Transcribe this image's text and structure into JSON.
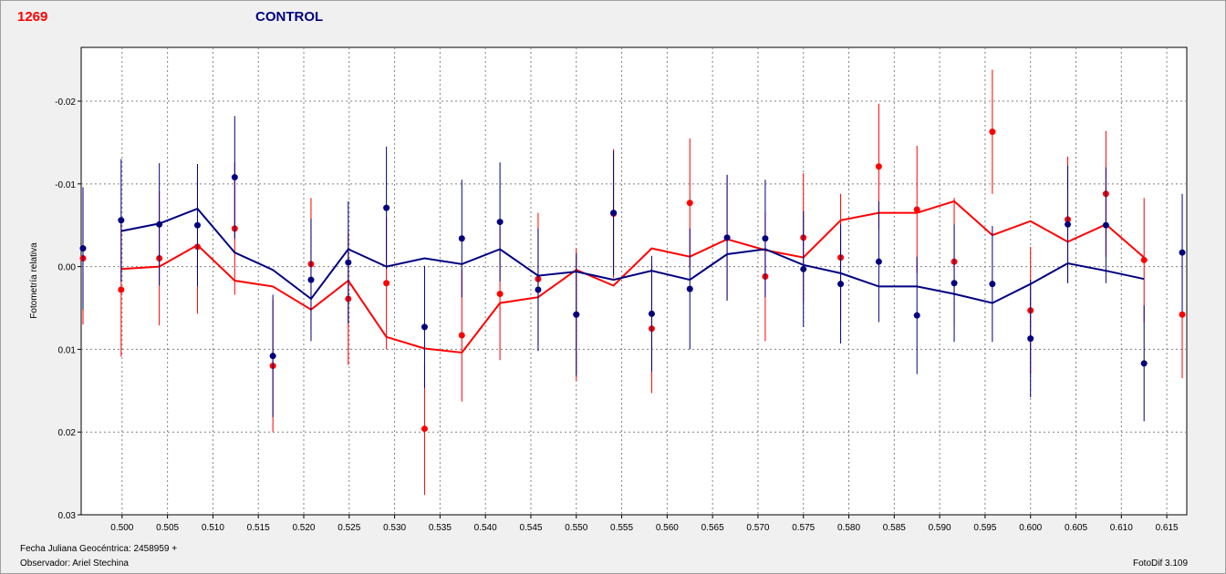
{
  "header": {
    "id_label": "1269",
    "title": "CONTROL"
  },
  "footer": {
    "date_label": "Fecha Juliana Geocéntrica: 2458959 +",
    "observer_label": "Observador: Ariel Stechina",
    "software_label": "FotoDif 3.109"
  },
  "colors": {
    "series_a": "#ff0000",
    "series_b": "#00007f",
    "grid": "#808080"
  },
  "chart_data": {
    "type": "scatter",
    "ylabel": "Fotometría relativa",
    "xlabel": "",
    "xlim": [
      0.4955,
      0.6172
    ],
    "ylim": [
      -0.0265,
      0.03
    ],
    "y_inverted": true,
    "grid": true,
    "x_ticks": [
      "0.500",
      "0.505",
      "0.510",
      "0.515",
      "0.520",
      "0.525",
      "0.530",
      "0.535",
      "0.540",
      "0.545",
      "0.550",
      "0.555",
      "0.560",
      "0.565",
      "0.570",
      "0.575",
      "0.580",
      "0.585",
      "0.590",
      "0.595",
      "0.600",
      "0.605",
      "0.610",
      "0.615"
    ],
    "y_ticks": [
      "-0.02",
      "-0.01",
      "0.00",
      "0.01",
      "0.02",
      "0.03"
    ],
    "series": [
      {
        "color": "#ff0000",
        "points": [
          {
            "x": 0.4957,
            "y": -0.001,
            "e": 0.008
          },
          {
            "x": 0.4999,
            "y": 0.0028,
            "e": 0.0081
          },
          {
            "x": 0.5041,
            "y": -0.001,
            "e": 0.0081
          },
          {
            "x": 0.5083,
            "y": -0.0024,
            "e": 0.0081
          },
          {
            "x": 0.5124,
            "y": -0.0046,
            "e": 0.008
          },
          {
            "x": 0.5166,
            "y": 0.012,
            "e": 0.008
          },
          {
            "x": 0.5208,
            "y": -0.0003,
            "e": 0.008
          },
          {
            "x": 0.5249,
            "y": 0.0039,
            "e": 0.008
          },
          {
            "x": 0.5291,
            "y": 0.002,
            "e": 0.008
          },
          {
            "x": 0.5333,
            "y": 0.0196,
            "e": 0.008
          },
          {
            "x": 0.5374,
            "y": 0.0083,
            "e": 0.008
          },
          {
            "x": 0.5416,
            "y": 0.0033,
            "e": 0.008
          },
          {
            "x": 0.5458,
            "y": 0.0015,
            "e": 0.008
          },
          {
            "x": 0.55,
            "y": 0.0058,
            "e": 0.008
          },
          {
            "x": 0.5541,
            "y": -0.0064,
            "e": 0.0078
          },
          {
            "x": 0.5583,
            "y": 0.0075,
            "e": 0.0078
          },
          {
            "x": 0.5625,
            "y": -0.0077,
            "e": 0.0078
          },
          {
            "x": 0.5666,
            "y": -0.0035,
            "e": 0.0076
          },
          {
            "x": 0.5708,
            "y": 0.0012,
            "e": 0.0078
          },
          {
            "x": 0.575,
            "y": -0.0035,
            "e": 0.0078
          },
          {
            "x": 0.5791,
            "y": -0.0011,
            "e": 0.0077
          },
          {
            "x": 0.5833,
            "y": -0.0121,
            "e": 0.0076
          },
          {
            "x": 0.5875,
            "y": -0.0069,
            "e": 0.0077
          },
          {
            "x": 0.5916,
            "y": -0.0006,
            "e": 0.0077
          },
          {
            "x": 0.5958,
            "y": -0.0163,
            "e": 0.0075
          },
          {
            "x": 0.6,
            "y": 0.0053,
            "e": 0.0077
          },
          {
            "x": 0.6041,
            "y": -0.0057,
            "e": 0.0076
          },
          {
            "x": 0.6083,
            "y": -0.0088,
            "e": 0.0076
          },
          {
            "x": 0.6125,
            "y": -0.0008,
            "e": 0.0075
          },
          {
            "x": 0.6167,
            "y": 0.0058,
            "e": 0.0077
          }
        ],
        "line": [
          {
            "x": 0.4999,
            "y": 0.0003
          },
          {
            "x": 0.5041,
            "y": 0.0
          },
          {
            "x": 0.5083,
            "y": -0.0026
          },
          {
            "x": 0.5124,
            "y": 0.0017
          },
          {
            "x": 0.5166,
            "y": 0.0024
          },
          {
            "x": 0.5208,
            "y": 0.0052
          },
          {
            "x": 0.5249,
            "y": 0.0017
          },
          {
            "x": 0.5291,
            "y": 0.0085
          },
          {
            "x": 0.5333,
            "y": 0.0099
          },
          {
            "x": 0.5374,
            "y": 0.0104
          },
          {
            "x": 0.5416,
            "y": 0.0044
          },
          {
            "x": 0.5458,
            "y": 0.0037
          },
          {
            "x": 0.55,
            "y": 0.0004
          },
          {
            "x": 0.5541,
            "y": 0.0023
          },
          {
            "x": 0.5583,
            "y": -0.0022
          },
          {
            "x": 0.5625,
            "y": -0.0012
          },
          {
            "x": 0.5666,
            "y": -0.0033
          },
          {
            "x": 0.5708,
            "y": -0.002
          },
          {
            "x": 0.575,
            "y": -0.0011
          },
          {
            "x": 0.5791,
            "y": -0.0056
          },
          {
            "x": 0.5833,
            "y": -0.0065
          },
          {
            "x": 0.5875,
            "y": -0.0065
          },
          {
            "x": 0.5916,
            "y": -0.0079
          },
          {
            "x": 0.5958,
            "y": -0.0038
          },
          {
            "x": 0.6,
            "y": -0.0055
          },
          {
            "x": 0.6041,
            "y": -0.003
          },
          {
            "x": 0.6083,
            "y": -0.0051
          },
          {
            "x": 0.6125,
            "y": -0.0011
          }
        ]
      },
      {
        "color": "#00007f",
        "points": [
          {
            "x": 0.4957,
            "y": -0.0022,
            "e": 0.0074
          },
          {
            "x": 0.4999,
            "y": -0.0056,
            "e": 0.0074
          },
          {
            "x": 0.5041,
            "y": -0.0051,
            "e": 0.0074
          },
          {
            "x": 0.5083,
            "y": -0.005,
            "e": 0.0074
          },
          {
            "x": 0.5124,
            "y": -0.0108,
            "e": 0.0074
          },
          {
            "x": 0.5166,
            "y": 0.0108,
            "e": 0.0074
          },
          {
            "x": 0.5208,
            "y": 0.0016,
            "e": 0.0074
          },
          {
            "x": 0.5249,
            "y": -0.0005,
            "e": 0.0074
          },
          {
            "x": 0.5291,
            "y": -0.0071,
            "e": 0.0074
          },
          {
            "x": 0.5333,
            "y": 0.0073,
            "e": 0.0074
          },
          {
            "x": 0.5374,
            "y": -0.0034,
            "e": 0.0071
          },
          {
            "x": 0.5416,
            "y": -0.0054,
            "e": 0.0072
          },
          {
            "x": 0.5458,
            "y": 0.0028,
            "e": 0.0074
          },
          {
            "x": 0.55,
            "y": 0.0058,
            "e": 0.0074
          },
          {
            "x": 0.5541,
            "y": -0.0065,
            "e": 0.0075
          },
          {
            "x": 0.5583,
            "y": 0.0057,
            "e": 0.007
          },
          {
            "x": 0.5625,
            "y": 0.0027,
            "e": 0.0073
          },
          {
            "x": 0.5666,
            "y": -0.0035,
            "e": 0.0076
          },
          {
            "x": 0.5708,
            "y": -0.0034,
            "e": 0.0071
          },
          {
            "x": 0.575,
            "y": 0.0003,
            "e": 0.007
          },
          {
            "x": 0.5791,
            "y": 0.0021,
            "e": 0.0072
          },
          {
            "x": 0.5833,
            "y": -0.0006,
            "e": 0.0073
          },
          {
            "x": 0.5875,
            "y": 0.0059,
            "e": 0.0071
          },
          {
            "x": 0.5916,
            "y": 0.002,
            "e": 0.0071
          },
          {
            "x": 0.5958,
            "y": 0.0021,
            "e": 0.007
          },
          {
            "x": 0.6,
            "y": 0.0087,
            "e": 0.0071
          },
          {
            "x": 0.6041,
            "y": -0.0051,
            "e": 0.0071
          },
          {
            "x": 0.6083,
            "y": -0.005,
            "e": 0.007
          },
          {
            "x": 0.6125,
            "y": 0.0117,
            "e": 0.007
          },
          {
            "x": 0.6167,
            "y": -0.0017,
            "e": 0.0071
          }
        ],
        "line": [
          {
            "x": 0.4999,
            "y": -0.0043
          },
          {
            "x": 0.5041,
            "y": -0.0052
          },
          {
            "x": 0.5083,
            "y": -0.007
          },
          {
            "x": 0.5124,
            "y": -0.0017
          },
          {
            "x": 0.5166,
            "y": 0.0004
          },
          {
            "x": 0.5208,
            "y": 0.0039
          },
          {
            "x": 0.5249,
            "y": -0.0021
          },
          {
            "x": 0.5291,
            "y": 0.0
          },
          {
            "x": 0.5333,
            "y": -0.001
          },
          {
            "x": 0.5374,
            "y": -0.0003
          },
          {
            "x": 0.5416,
            "y": -0.0021
          },
          {
            "x": 0.5458,
            "y": 0.0011
          },
          {
            "x": 0.55,
            "y": 0.0006
          },
          {
            "x": 0.5541,
            "y": 0.0016
          },
          {
            "x": 0.5583,
            "y": 0.0005
          },
          {
            "x": 0.5625,
            "y": 0.0016
          },
          {
            "x": 0.5666,
            "y": -0.0015
          },
          {
            "x": 0.5708,
            "y": -0.0021
          },
          {
            "x": 0.575,
            "y": -0.0002
          },
          {
            "x": 0.5791,
            "y": 0.0008
          },
          {
            "x": 0.5833,
            "y": 0.0024
          },
          {
            "x": 0.5875,
            "y": 0.0024
          },
          {
            "x": 0.5916,
            "y": 0.0033
          },
          {
            "x": 0.5958,
            "y": 0.0044
          },
          {
            "x": 0.6,
            "y": 0.0021
          },
          {
            "x": 0.6041,
            "y": -0.0004
          },
          {
            "x": 0.6083,
            "y": 0.0005
          },
          {
            "x": 0.6125,
            "y": 0.0015
          }
        ]
      }
    ]
  }
}
